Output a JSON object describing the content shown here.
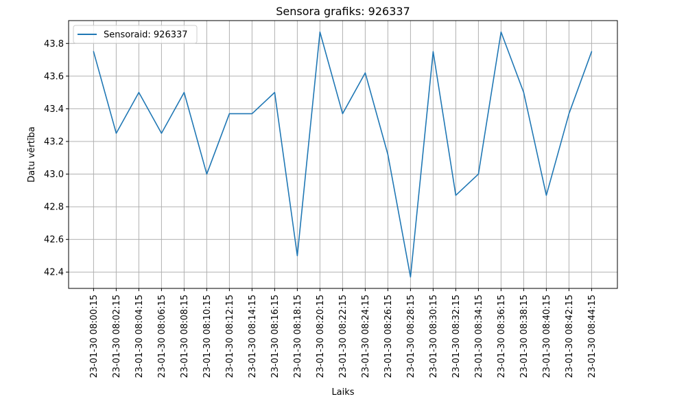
{
  "chart_data": {
    "type": "line",
    "title": "Sensora grafiks: 926337",
    "xlabel": "Laiks",
    "ylabel": "Datu vērtība",
    "x": [
      "23-01-30 08:00:15",
      "23-01-30 08:02:15",
      "23-01-30 08:04:15",
      "23-01-30 08:06:15",
      "23-01-30 08:08:15",
      "23-01-30 08:10:15",
      "23-01-30 08:12:15",
      "23-01-30 08:14:15",
      "23-01-30 08:16:15",
      "23-01-30 08:18:15",
      "23-01-30 08:20:15",
      "23-01-30 08:22:15",
      "23-01-30 08:24:15",
      "23-01-30 08:26:15",
      "23-01-30 08:28:15",
      "23-01-30 08:30:15",
      "23-01-30 08:32:15",
      "23-01-30 08:34:15",
      "23-01-30 08:36:15",
      "23-01-30 08:38:15",
      "23-01-30 08:40:15",
      "23-01-30 08:42:15",
      "23-01-30 08:44:15"
    ],
    "series": [
      {
        "name": "Sensoraid: 926337",
        "color": "#1f77b4",
        "values": [
          43.75,
          43.25,
          43.5,
          43.25,
          43.5,
          43.0,
          43.37,
          43.37,
          43.5,
          42.5,
          43.87,
          43.37,
          43.62,
          43.12,
          42.37,
          43.75,
          42.87,
          43.0,
          43.87,
          43.5,
          42.87,
          43.37,
          43.75
        ]
      }
    ],
    "ylim": [
      42.3,
      43.94
    ],
    "yticks": [
      42.4,
      42.6,
      42.8,
      43.0,
      43.2,
      43.4,
      43.6,
      43.8
    ],
    "ytick_labels": [
      "42.4",
      "42.6",
      "42.8",
      "43.0",
      "43.2",
      "43.4",
      "43.6",
      "43.8"
    ],
    "grid": true,
    "legend": "top-left"
  }
}
